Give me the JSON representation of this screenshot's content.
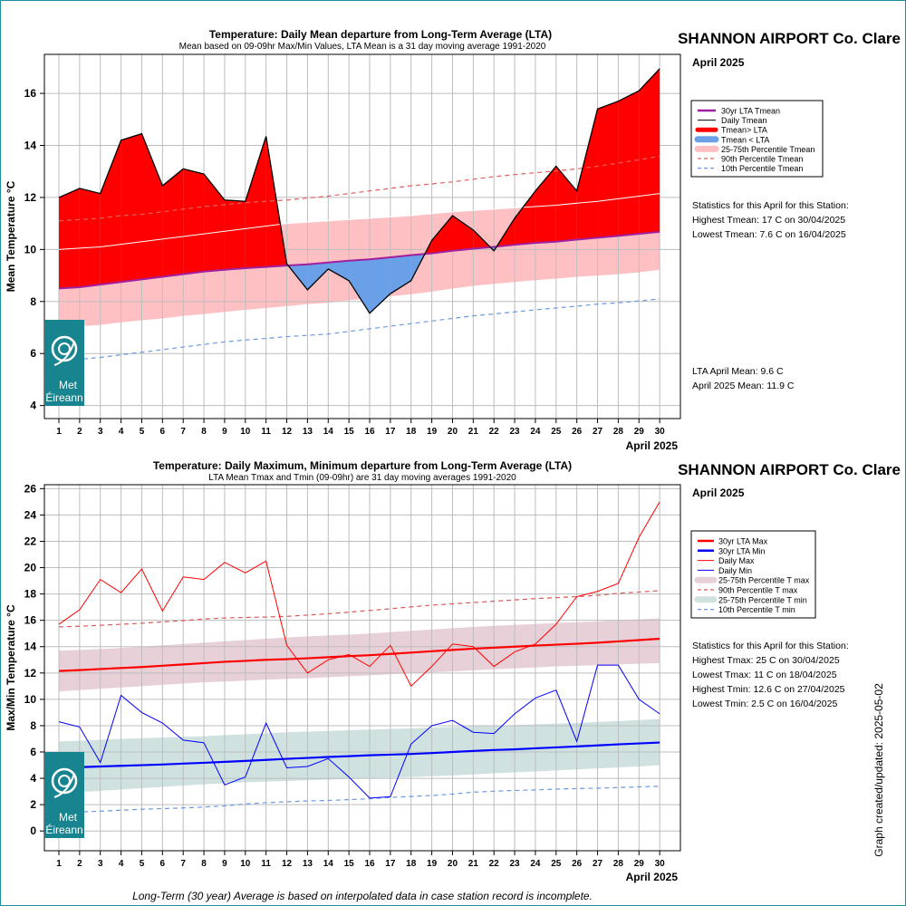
{
  "chart_data": [
    {
      "type": "area",
      "title": "Temperature: Daily Mean departure from Long-Term Average (LTA)",
      "subtitle": "Mean based on 09-09hr Max/Min Values, LTA Mean is a 31 day moving average 1991-2020",
      "station": "SHANNON AIRPORT Co. Clare",
      "month_label": "April 2025",
      "ylabel": "Mean Temperature °C",
      "xlabel": "April 2025",
      "ylim": [
        3.5,
        17.5
      ],
      "xlim": [
        0.3,
        31
      ],
      "y_ticks": [
        "4",
        "6",
        "8",
        "10",
        "12",
        "14",
        "16"
      ],
      "x_ticks": [
        "1",
        "2",
        "3",
        "4",
        "5",
        "6",
        "7",
        "8",
        "9",
        "10",
        "11",
        "12",
        "13",
        "14",
        "15",
        "16",
        "17",
        "18",
        "19",
        "20",
        "21",
        "22",
        "23",
        "24",
        "25",
        "26",
        "27",
        "28",
        "29",
        "30"
      ],
      "grid": true,
      "x": [
        1,
        2,
        3,
        4,
        5,
        6,
        7,
        8,
        9,
        10,
        11,
        12,
        13,
        14,
        15,
        16,
        17,
        18,
        19,
        20,
        21,
        22,
        23,
        24,
        25,
        26,
        27,
        28,
        29,
        30
      ],
      "series": [
        {
          "name": "30yr LTA Tmean",
          "color": "#a020a0",
          "values": [
            8.5,
            8.55,
            8.65,
            8.75,
            8.85,
            8.95,
            9.05,
            9.15,
            9.22,
            9.28,
            9.33,
            9.38,
            9.43,
            9.5,
            9.57,
            9.62,
            9.7,
            9.78,
            9.85,
            9.95,
            10.03,
            10.1,
            10.18,
            10.25,
            10.3,
            10.38,
            10.45,
            10.52,
            10.6,
            10.68
          ]
        },
        {
          "name": "Daily Tmean",
          "color": "#000000",
          "values": [
            12.0,
            12.35,
            12.15,
            14.2,
            14.45,
            12.45,
            13.1,
            12.9,
            11.9,
            11.85,
            14.35,
            9.45,
            8.45,
            9.25,
            8.8,
            7.55,
            8.3,
            8.8,
            10.35,
            11.3,
            10.75,
            9.95,
            11.2,
            12.25,
            13.2,
            12.25,
            15.4,
            15.7,
            16.1,
            16.95
          ]
        },
        {
          "name": "Tmean> LTA",
          "color": "#ff0000"
        },
        {
          "name": "Tmean < LTA",
          "color": "#6aa0e8"
        },
        {
          "name": "25-75th Percentile Tmean",
          "color": "#ffc0c4",
          "lower": [
            7.0,
            7.05,
            7.1,
            7.2,
            7.28,
            7.35,
            7.45,
            7.52,
            7.6,
            7.68,
            7.75,
            7.82,
            7.9,
            7.95,
            8.05,
            8.12,
            8.2,
            8.28,
            8.38,
            8.5,
            8.6,
            8.68,
            8.75,
            8.82,
            8.88,
            8.95,
            9.0,
            9.05,
            9.12,
            9.22
          ],
          "upper": [
            10.0,
            10.05,
            10.1,
            10.2,
            10.3,
            10.4,
            10.5,
            10.6,
            10.7,
            10.8,
            10.9,
            11.0,
            11.05,
            11.1,
            11.15,
            11.2,
            11.25,
            11.3,
            11.38,
            11.45,
            11.5,
            11.55,
            11.6,
            11.65,
            11.7,
            11.78,
            11.85,
            11.95,
            12.05,
            12.15
          ]
        },
        {
          "name": "90th Percentile Tmean",
          "color": "#e06060",
          "values": [
            11.1,
            11.15,
            11.2,
            11.3,
            11.35,
            11.45,
            11.55,
            11.65,
            11.72,
            11.8,
            11.85,
            11.9,
            11.98,
            12.05,
            12.15,
            12.25,
            12.35,
            12.45,
            12.52,
            12.6,
            12.7,
            12.8,
            12.88,
            12.95,
            13.02,
            13.1,
            13.2,
            13.32,
            13.45,
            13.58
          ]
        },
        {
          "name": "10th Percentile Tmean",
          "color": "#6a9ae0",
          "values": [
            5.7,
            5.78,
            5.85,
            5.95,
            6.05,
            6.15,
            6.25,
            6.35,
            6.45,
            6.52,
            6.58,
            6.65,
            6.7,
            6.75,
            6.85,
            6.95,
            7.05,
            7.15,
            7.25,
            7.35,
            7.45,
            7.52,
            7.6,
            7.68,
            7.75,
            7.82,
            7.9,
            7.95,
            8.02,
            8.1
          ]
        }
      ],
      "stats": {
        "heading": "Statistics for this April for this Station:",
        "lines": [
          "Highest Tmean: 17 C on 30/04/2025",
          "Lowest Tmean: 7.6 C on 16/04/2025"
        ],
        "lta_mean": "LTA April Mean: 9.6 C",
        "month_mean": "April 2025 Mean: 11.9 C"
      },
      "logo_text": [
        "Met",
        "Éireann"
      ]
    },
    {
      "type": "line",
      "title": "Temperature: Daily Maximum, Minimum departure from Long-Term Average (LTA)",
      "subtitle": "LTA Mean Tmax and Tmin (09-09hr) are 31 day moving averages 1991-2020",
      "station": "SHANNON AIRPORT Co. Clare",
      "month_label": "April 2025",
      "ylabel": "Max/Min Temperature °C",
      "xlabel": "April 2025",
      "ylim": [
        -1.5,
        26.3
      ],
      "xlim": [
        0.3,
        31
      ],
      "y_ticks": [
        "0",
        "2",
        "4",
        "6",
        "8",
        "10",
        "12",
        "14",
        "16",
        "18",
        "20",
        "22",
        "24",
        "26"
      ],
      "x_ticks": [
        "1",
        "2",
        "3",
        "4",
        "5",
        "6",
        "7",
        "8",
        "9",
        "10",
        "11",
        "12",
        "13",
        "14",
        "15",
        "16",
        "17",
        "18",
        "19",
        "20",
        "21",
        "22",
        "23",
        "24",
        "25",
        "26",
        "27",
        "28",
        "29",
        "30"
      ],
      "grid": true,
      "x": [
        1,
        2,
        3,
        4,
        5,
        6,
        7,
        8,
        9,
        10,
        11,
        12,
        13,
        14,
        15,
        16,
        17,
        18,
        19,
        20,
        21,
        22,
        23,
        24,
        25,
        26,
        27,
        28,
        29,
        30
      ],
      "series": [
        {
          "name": "30yr LTA Max",
          "color": "#ff0000",
          "values": [
            12.15,
            12.22,
            12.3,
            12.38,
            12.45,
            12.55,
            12.65,
            12.75,
            12.85,
            12.92,
            13.0,
            13.05,
            13.12,
            13.2,
            13.28,
            13.35,
            13.45,
            13.55,
            13.65,
            13.75,
            13.85,
            13.92,
            14.0,
            14.08,
            14.15,
            14.22,
            14.3,
            14.4,
            14.5,
            14.6
          ]
        },
        {
          "name": "30yr LTA Min",
          "color": "#0000ff",
          "values": [
            4.8,
            4.85,
            4.9,
            4.95,
            5.0,
            5.05,
            5.12,
            5.18,
            5.25,
            5.32,
            5.4,
            5.48,
            5.55,
            5.62,
            5.68,
            5.75,
            5.8,
            5.85,
            5.92,
            6.0,
            6.08,
            6.15,
            6.2,
            6.28,
            6.35,
            6.42,
            6.5,
            6.58,
            6.65,
            6.72
          ]
        },
        {
          "name": "Daily Max",
          "color": "#ff0000",
          "values": [
            15.7,
            16.8,
            19.1,
            18.1,
            19.9,
            16.7,
            19.3,
            19.1,
            20.4,
            19.6,
            20.5,
            14.1,
            12.0,
            13.0,
            13.4,
            12.5,
            14.1,
            11.0,
            12.5,
            14.2,
            14.0,
            12.5,
            13.6,
            14.2,
            15.7,
            17.8,
            18.2,
            18.8,
            22.3,
            25.0
          ]
        },
        {
          "name": "Daily Min",
          "color": "#0000ff",
          "values": [
            8.3,
            7.9,
            5.2,
            10.3,
            9.0,
            8.2,
            6.9,
            6.7,
            3.5,
            4.1,
            8.2,
            4.8,
            4.9,
            5.5,
            4.1,
            2.5,
            2.6,
            6.6,
            8.0,
            8.4,
            7.5,
            7.4,
            8.9,
            10.1,
            10.7,
            6.8,
            12.6,
            12.6,
            10.0,
            8.9
          ]
        },
        {
          "name": "25-75th Percentile T max",
          "color": "#e8d0d8",
          "lower": [
            10.6,
            10.7,
            10.8,
            10.9,
            11.0,
            11.1,
            11.2,
            11.3,
            11.35,
            11.42,
            11.5,
            11.55,
            11.6,
            11.68,
            11.75,
            11.82,
            11.9,
            11.98,
            12.05,
            12.12,
            12.2,
            12.28,
            12.35,
            12.42,
            12.5,
            12.55,
            12.6,
            12.65,
            12.7,
            12.75
          ],
          "upper": [
            13.7,
            13.75,
            13.82,
            13.9,
            14.0,
            14.1,
            14.2,
            14.3,
            14.4,
            14.5,
            14.6,
            14.7,
            14.78,
            14.85,
            14.92,
            15.0,
            15.1,
            15.2,
            15.3,
            15.4,
            15.5,
            15.58,
            15.65,
            15.72,
            15.8,
            15.85,
            15.92,
            16.0,
            16.08,
            16.15
          ]
        },
        {
          "name": "90th Percentile T max",
          "color": "#d85a5a",
          "values": [
            15.5,
            15.55,
            15.62,
            15.7,
            15.78,
            15.88,
            15.98,
            16.1,
            16.18,
            16.22,
            16.25,
            16.3,
            16.4,
            16.5,
            16.62,
            16.75,
            16.88,
            17.02,
            17.15,
            17.25,
            17.35,
            17.45,
            17.55,
            17.65,
            17.72,
            17.8,
            17.9,
            18.05,
            18.15,
            18.25
          ]
        },
        {
          "name": "25-75th Percentile T min",
          "color": "#d0e2e0",
          "lower": [
            2.9,
            2.95,
            3.05,
            3.15,
            3.25,
            3.35,
            3.45,
            3.55,
            3.62,
            3.7,
            3.75,
            3.8,
            3.85,
            3.9,
            3.95,
            4.0,
            4.05,
            4.1,
            4.15,
            4.22,
            4.3,
            4.38,
            4.45,
            4.52,
            4.6,
            4.68,
            4.75,
            4.82,
            4.9,
            5.0
          ],
          "upper": [
            6.8,
            6.85,
            6.92,
            7.0,
            7.05,
            7.1,
            7.15,
            7.2,
            7.28,
            7.35,
            7.42,
            7.5,
            7.55,
            7.6,
            7.65,
            7.7,
            7.75,
            7.8,
            7.85,
            7.9,
            7.95,
            8.0,
            8.05,
            8.1,
            8.15,
            8.2,
            8.28,
            8.35,
            8.42,
            8.5
          ]
        },
        {
          "name": "10th Percentile T min",
          "color": "#6a9ae0",
          "values": [
            1.4,
            1.45,
            1.5,
            1.58,
            1.65,
            1.7,
            1.75,
            1.82,
            1.9,
            2.05,
            2.15,
            2.22,
            2.28,
            2.32,
            2.38,
            2.45,
            2.55,
            2.62,
            2.7,
            2.8,
            2.95,
            3.02,
            3.08,
            3.12,
            3.18,
            3.22,
            3.25,
            3.3,
            3.35,
            3.4
          ]
        }
      ],
      "stats": {
        "heading": "Statistics for this April for this Station:",
        "lines": [
          "Highest Tmax: 25 C on 30/04/2025",
          "Lowest Tmax: 11 C on 18/04/2025",
          "Highest Tmin: 12.6 C on 27/04/2025",
          "Lowest Tmin: 2.5 C on 16/04/2025"
        ]
      },
      "logo_text": [
        "Met",
        "Éireann"
      ]
    }
  ],
  "footer": {
    "note": "Long-Term (30 year) Average is based on interpolated data in case station record is incomplete.",
    "created": "Graph created/updated:  2025-05-02"
  }
}
